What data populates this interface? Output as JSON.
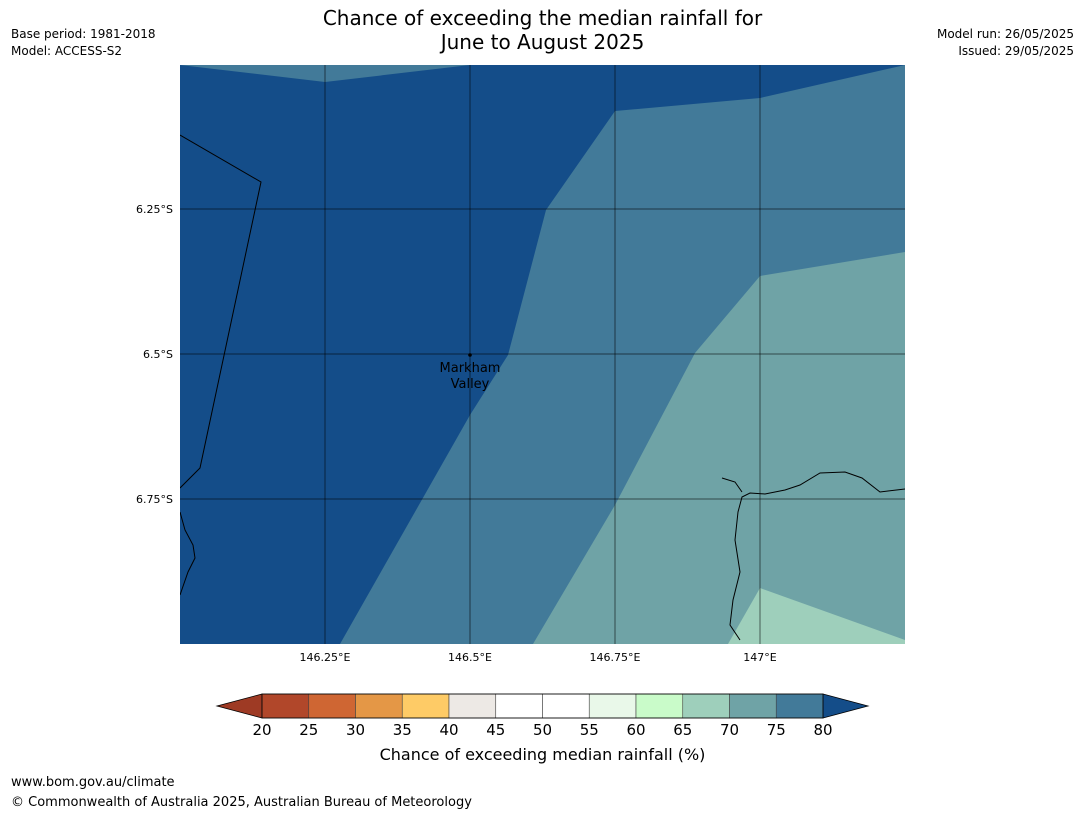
{
  "header": {
    "title_line1": "Chance of exceeding the median rainfall for",
    "title_line2": "June to August 2025",
    "base_period": "Base period: 1981-2018",
    "model": "Model: ACCESS-S2",
    "model_run": "Model run: 26/05/2025",
    "issued": "Issued: 29/05/2025"
  },
  "map": {
    "lat_labels": [
      "6.25°S",
      "6.5°S",
      "6.75°S"
    ],
    "lon_labels": [
      "146.25°E",
      "146.5°E",
      "146.75°E",
      "147°E"
    ],
    "place": {
      "name_line1": "Markham",
      "name_line2": "Valley"
    },
    "colors": {
      "band_70_75": "#6fa3a6",
      "band_75_80": "#427a99",
      "band_80_plus": "#144d89",
      "band_65_70": "#9ecfbb"
    }
  },
  "colorbar": {
    "ticks": [
      "20",
      "25",
      "30",
      "35",
      "40",
      "45",
      "50",
      "55",
      "60",
      "65",
      "70",
      "75",
      "80"
    ],
    "colors": [
      "#b1472a",
      "#cf6633",
      "#e49746",
      "#fecb66",
      "#ede9e5",
      "#ffffff",
      "#ffffff",
      "#e9f8e9",
      "#c9fbc9",
      "#9ecfbb",
      "#6fa3a6",
      "#427a99"
    ],
    "under_color": "#9e3a24",
    "over_color": "#144d89",
    "title": "Chance of exceeding median rainfall (%)"
  },
  "footer": {
    "url": "www.bom.gov.au/climate",
    "copyright": "© Commonwealth of Australia 2025, Australian Bureau of Meteorology"
  }
}
